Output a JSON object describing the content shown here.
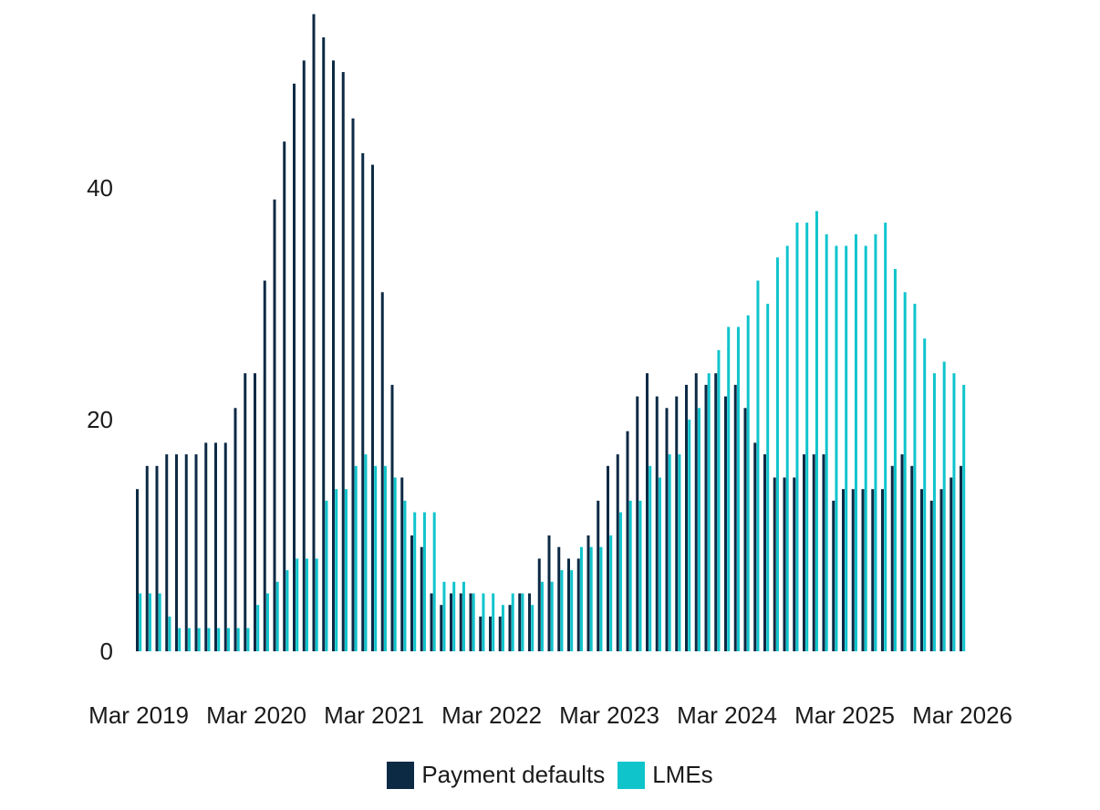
{
  "chart_data": {
    "type": "bar",
    "title": "",
    "xlabel": "",
    "ylabel": "",
    "ylim": [
      0,
      55
    ],
    "yticks": [
      0,
      20,
      40
    ],
    "x_tick_labels": [
      "Mar 2019",
      "Mar 2020",
      "Mar 2021",
      "Mar 2022",
      "Mar 2023",
      "Mar 2024",
      "Mar 2025",
      "Mar 2026"
    ],
    "grid": false,
    "legend_position": "bottom-center",
    "series": [
      {
        "name": "Payment defaults",
        "color": "#0d2a45",
        "values": [
          14,
          16,
          16,
          17,
          17,
          17,
          17,
          18,
          18,
          18,
          21,
          24,
          24,
          32,
          39,
          44,
          49,
          51,
          55,
          53,
          51,
          50,
          46,
          43,
          42,
          31,
          23,
          15,
          10,
          9,
          5,
          4,
          5,
          5,
          5,
          3,
          3,
          3,
          4,
          5,
          5,
          8,
          10,
          9,
          8,
          8,
          10,
          13,
          16,
          17,
          19,
          22,
          24,
          22,
          21,
          22,
          23,
          24,
          23,
          24,
          22,
          23,
          21,
          18,
          17,
          15,
          15,
          15,
          17,
          17,
          17,
          13,
          14,
          14,
          14,
          14,
          14,
          16,
          17,
          16,
          14,
          13,
          14,
          15,
          16
        ]
      },
      {
        "name": "LMEs",
        "color": "#10c4cc",
        "values": [
          5,
          5,
          5,
          3,
          2,
          2,
          2,
          2,
          2,
          2,
          2,
          2,
          4,
          5,
          6,
          7,
          8,
          8,
          8,
          13,
          14,
          14,
          16,
          17,
          16,
          16,
          15,
          13,
          12,
          12,
          12,
          6,
          6,
          6,
          5,
          5,
          5,
          4,
          5,
          5,
          4,
          6,
          6,
          7,
          7,
          9,
          9,
          9,
          10,
          12,
          13,
          13,
          16,
          15,
          17,
          17,
          20,
          21,
          24,
          26,
          28,
          28,
          29,
          32,
          30,
          34,
          35,
          37,
          37,
          38,
          36,
          35,
          35,
          36,
          35,
          36,
          37,
          33,
          31,
          30,
          27,
          24,
          25,
          24,
          23
        ]
      }
    ]
  }
}
